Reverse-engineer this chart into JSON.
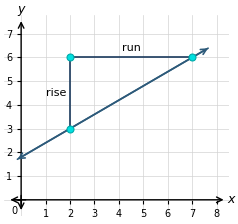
{
  "xlim": [
    0,
    8
  ],
  "ylim": [
    0,
    8
  ],
  "xticks": [
    0,
    1,
    2,
    3,
    4,
    5,
    6,
    7,
    8
  ],
  "yticks": [
    0,
    1,
    2,
    3,
    4,
    5,
    6,
    7
  ],
  "xlabel": "x",
  "ylabel": "y",
  "line_color": "#2d5a7a",
  "right_angle_color": "#1a3a5c",
  "point_color": "#00e0e0",
  "point_border": "#00aaaa",
  "p1": [
    2,
    3
  ],
  "p2": [
    7,
    6
  ],
  "p3": [
    2,
    6
  ],
  "rise_label": "rise",
  "run_label": "run",
  "figsize": [
    2.38,
    2.24
  ],
  "dpi": 100,
  "tick_fontsize": 7,
  "label_fontsize": 9,
  "annotation_fontsize": 8
}
